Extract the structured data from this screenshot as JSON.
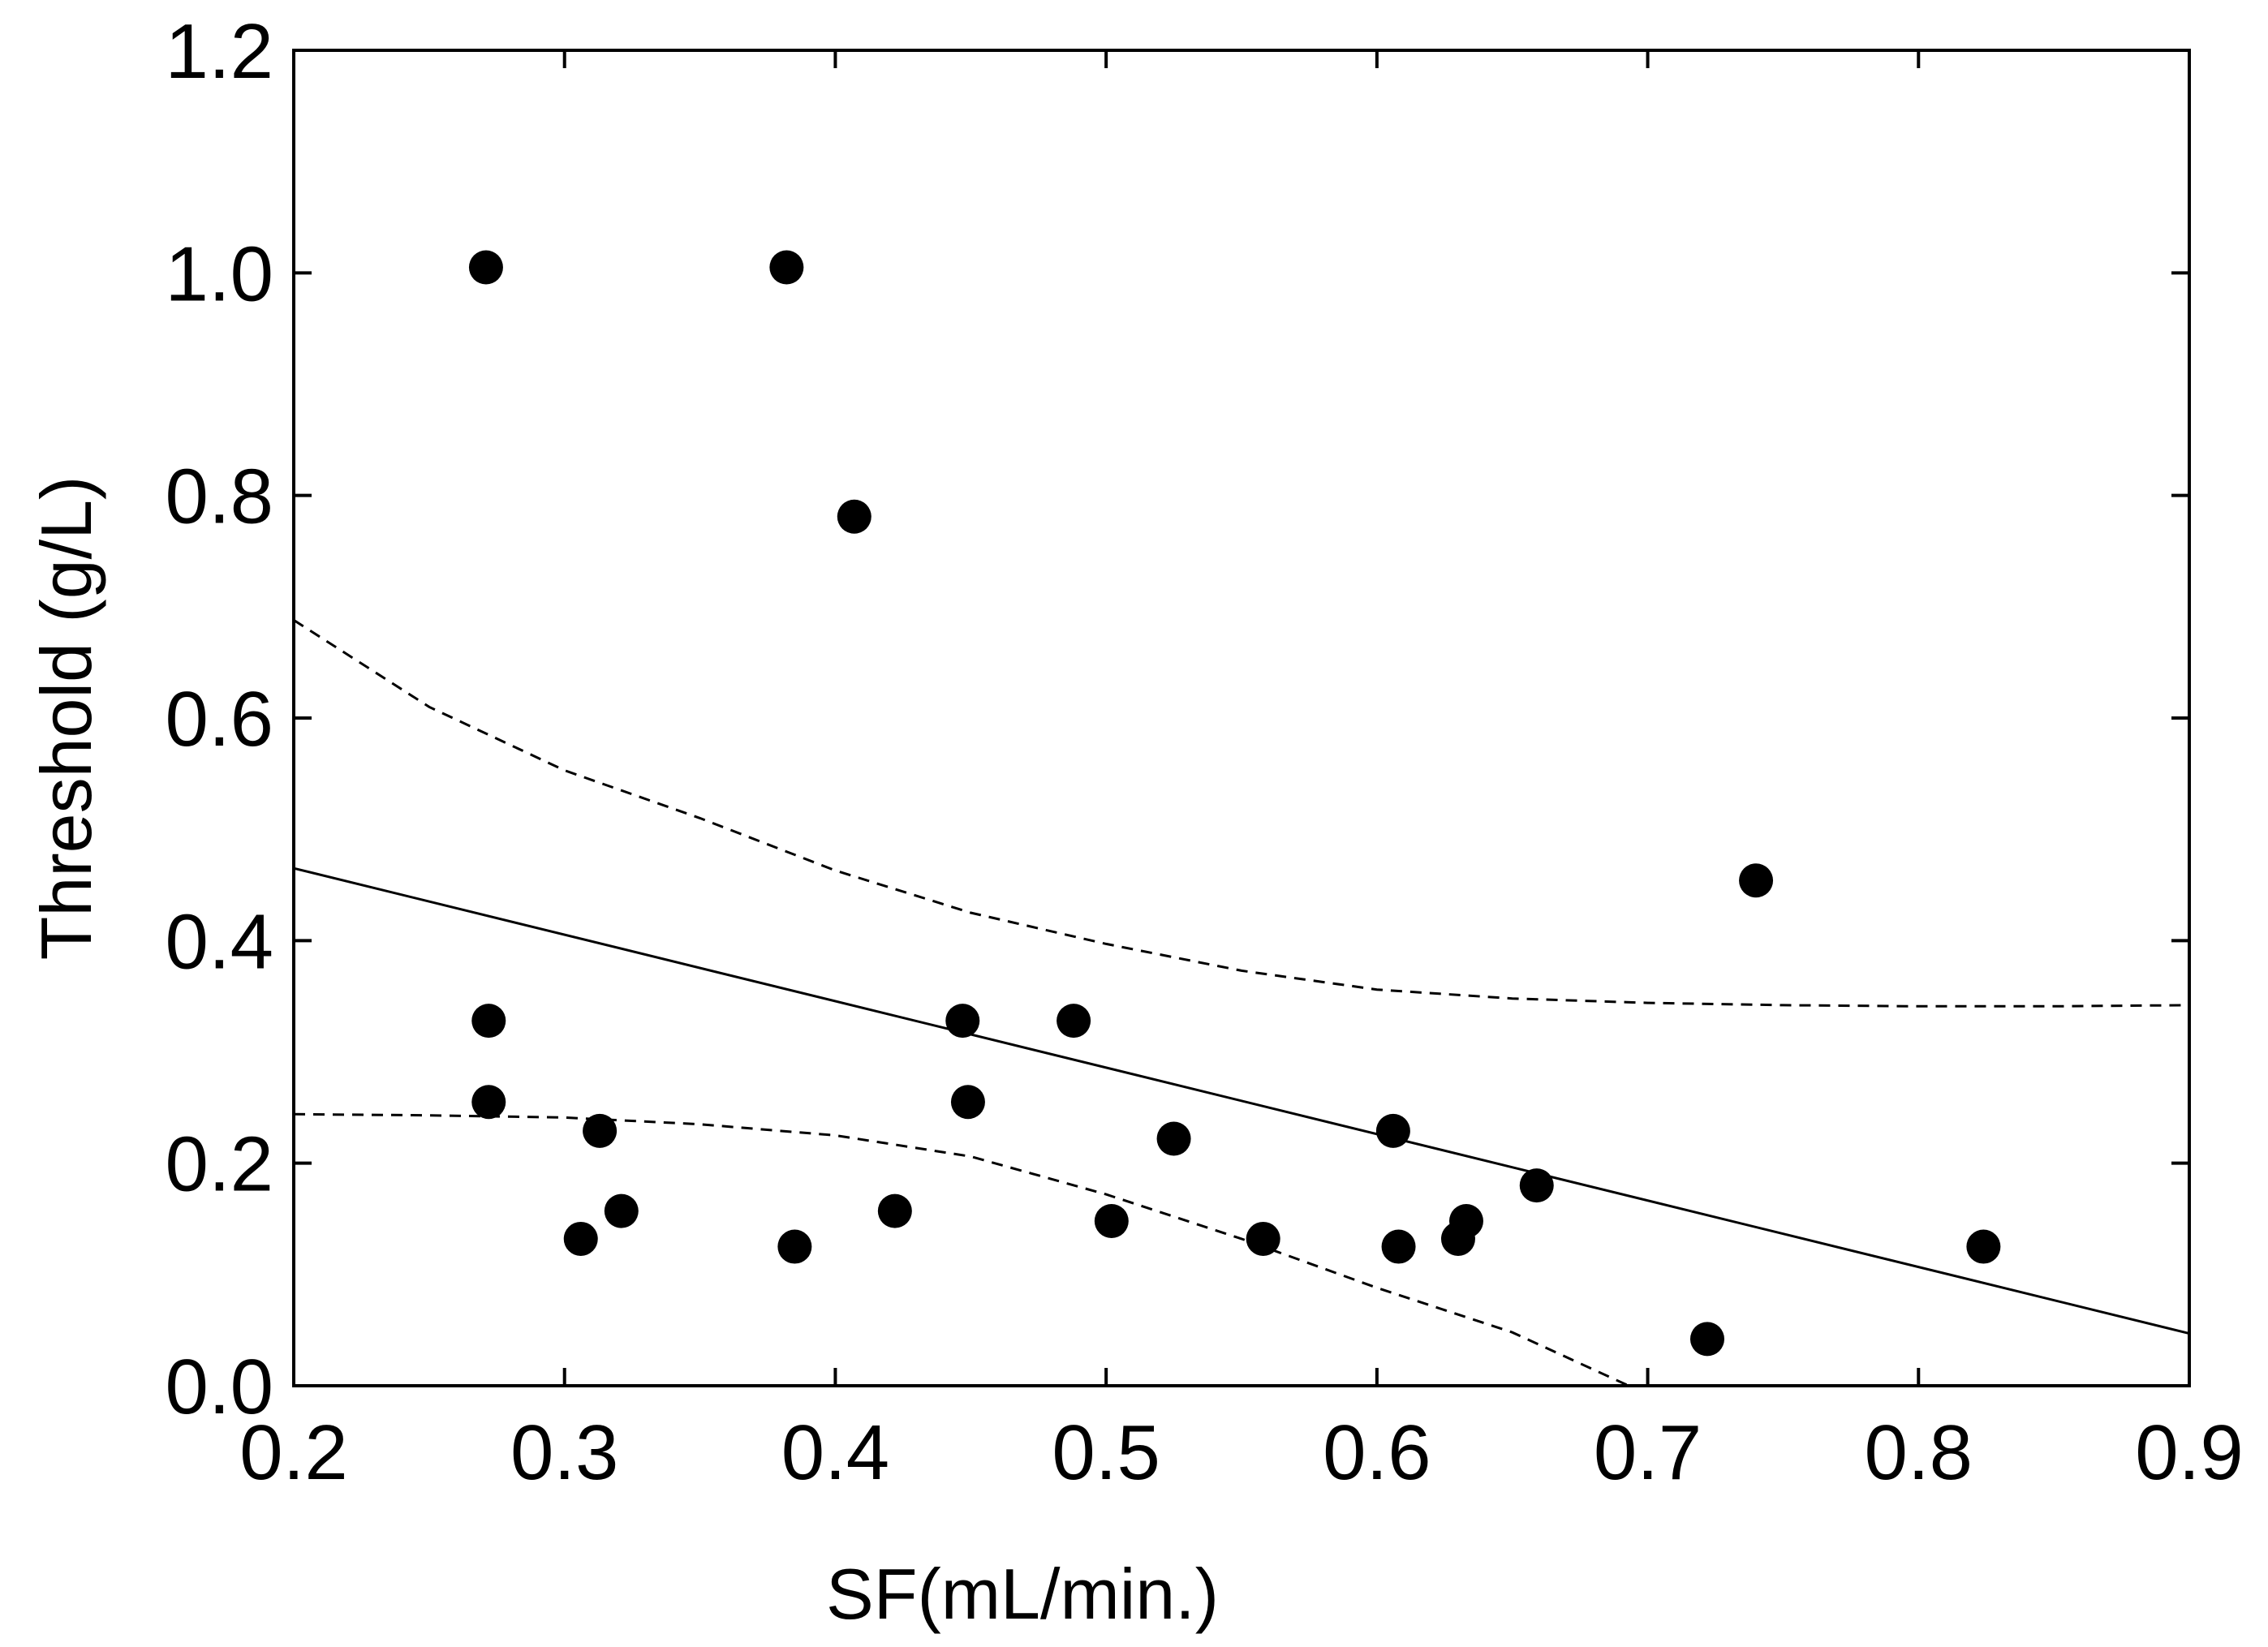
{
  "chart_data": {
    "type": "scatter",
    "title": "",
    "xlabel": "SF(mL/min.)",
    "ylabel": "Threshold (g/L)",
    "xlim": [
      0.2,
      0.9
    ],
    "ylim": [
      0.0,
      1.2
    ],
    "xticks": [
      0.2,
      0.3,
      0.4,
      0.5,
      0.6,
      0.7,
      0.8,
      0.9
    ],
    "yticks": [
      0.0,
      0.2,
      0.4,
      0.6,
      0.8,
      1.0,
      1.2
    ],
    "xtick_labels": [
      "0.2",
      "0.3",
      "0.4",
      "0.5",
      "0.6",
      "0.7",
      "0.8",
      "0.9"
    ],
    "ytick_labels": [
      "0.0",
      "0.2",
      "0.4",
      "0.6",
      "0.8",
      "1.0",
      "1.2"
    ],
    "grid": false,
    "points": [
      {
        "x": 0.271,
        "y": 1.005
      },
      {
        "x": 0.382,
        "y": 1.005
      },
      {
        "x": 0.407,
        "y": 0.781
      },
      {
        "x": 0.74,
        "y": 0.454
      },
      {
        "x": 0.272,
        "y": 0.328
      },
      {
        "x": 0.447,
        "y": 0.328
      },
      {
        "x": 0.488,
        "y": 0.328
      },
      {
        "x": 0.272,
        "y": 0.255
      },
      {
        "x": 0.449,
        "y": 0.255
      },
      {
        "x": 0.313,
        "y": 0.229
      },
      {
        "x": 0.606,
        "y": 0.229
      },
      {
        "x": 0.525,
        "y": 0.222
      },
      {
        "x": 0.659,
        "y": 0.18
      },
      {
        "x": 0.321,
        "y": 0.157
      },
      {
        "x": 0.422,
        "y": 0.157
      },
      {
        "x": 0.502,
        "y": 0.148
      },
      {
        "x": 0.633,
        "y": 0.148
      },
      {
        "x": 0.306,
        "y": 0.132
      },
      {
        "x": 0.558,
        "y": 0.132
      },
      {
        "x": 0.63,
        "y": 0.132
      },
      {
        "x": 0.385,
        "y": 0.125
      },
      {
        "x": 0.608,
        "y": 0.125
      },
      {
        "x": 0.824,
        "y": 0.125
      },
      {
        "x": 0.722,
        "y": 0.042
      }
    ],
    "regression_line": {
      "x": [
        0.2,
        0.9
      ],
      "y": [
        0.465,
        0.047
      ]
    },
    "upper_confidence": {
      "x": [
        0.2,
        0.25,
        0.3,
        0.35,
        0.4,
        0.45,
        0.5,
        0.55,
        0.6,
        0.65,
        0.7,
        0.75,
        0.8,
        0.85,
        0.9
      ],
      "y": [
        0.688,
        0.61,
        0.553,
        0.51,
        0.463,
        0.425,
        0.397,
        0.373,
        0.356,
        0.348,
        0.344,
        0.342,
        0.341,
        0.341,
        0.342
      ]
    },
    "lower_confidence": {
      "x": [
        0.2,
        0.25,
        0.3,
        0.35,
        0.4,
        0.45,
        0.5,
        0.55,
        0.6,
        0.65,
        0.693
      ],
      "y": [
        0.244,
        0.243,
        0.241,
        0.235,
        0.225,
        0.206,
        0.172,
        0.132,
        0.088,
        0.048,
        0.0
      ]
    }
  }
}
